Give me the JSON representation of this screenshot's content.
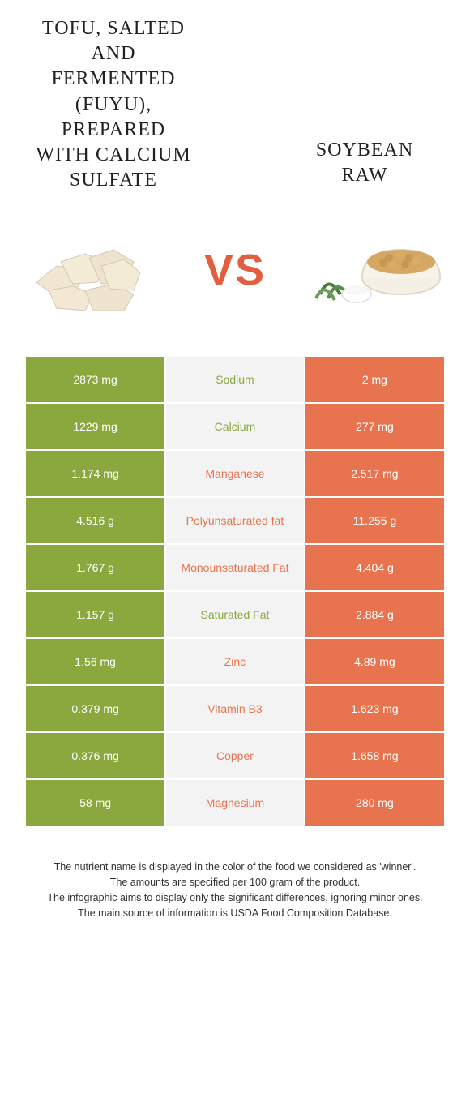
{
  "header": {
    "left_title": "Tofu, salted and fermented (fuyu), prepared with calcium sulfate",
    "right_title": "Soybean raw",
    "vs": "VS"
  },
  "colors": {
    "left_bg": "#8ba83e",
    "right_bg": "#e8744f",
    "mid_bg": "#f3f3f3",
    "vs_color": "#e15f3f"
  },
  "rows": [
    {
      "left": "2873 mg",
      "label": "Sodium",
      "right": "2 mg",
      "winner": "left"
    },
    {
      "left": "1229 mg",
      "label": "Calcium",
      "right": "277 mg",
      "winner": "left"
    },
    {
      "left": "1.174 mg",
      "label": "Manganese",
      "right": "2.517 mg",
      "winner": "right"
    },
    {
      "left": "4.516 g",
      "label": "Polyunsaturated fat",
      "right": "11.255 g",
      "winner": "right"
    },
    {
      "left": "1.767 g",
      "label": "Monounsaturated Fat",
      "right": "4.404 g",
      "winner": "right"
    },
    {
      "left": "1.157 g",
      "label": "Saturated Fat",
      "right": "2.884 g",
      "winner": "left"
    },
    {
      "left": "1.56 mg",
      "label": "Zinc",
      "right": "4.89 mg",
      "winner": "right"
    },
    {
      "left": "0.379 mg",
      "label": "Vitamin B3",
      "right": "1.623 mg",
      "winner": "right"
    },
    {
      "left": "0.376 mg",
      "label": "Copper",
      "right": "1.658 mg",
      "winner": "right"
    },
    {
      "left": "58 mg",
      "label": "Magnesium",
      "right": "280 mg",
      "winner": "right"
    }
  ],
  "footer": {
    "line1": "The nutrient name is displayed in the color of the food we considered as 'winner'.",
    "line2": "The amounts are specified per 100 gram of the product.",
    "line3": "The infographic aims to display only the significant differences, ignoring minor ones.",
    "line4": "The main source of information is USDA Food Composition Database."
  }
}
